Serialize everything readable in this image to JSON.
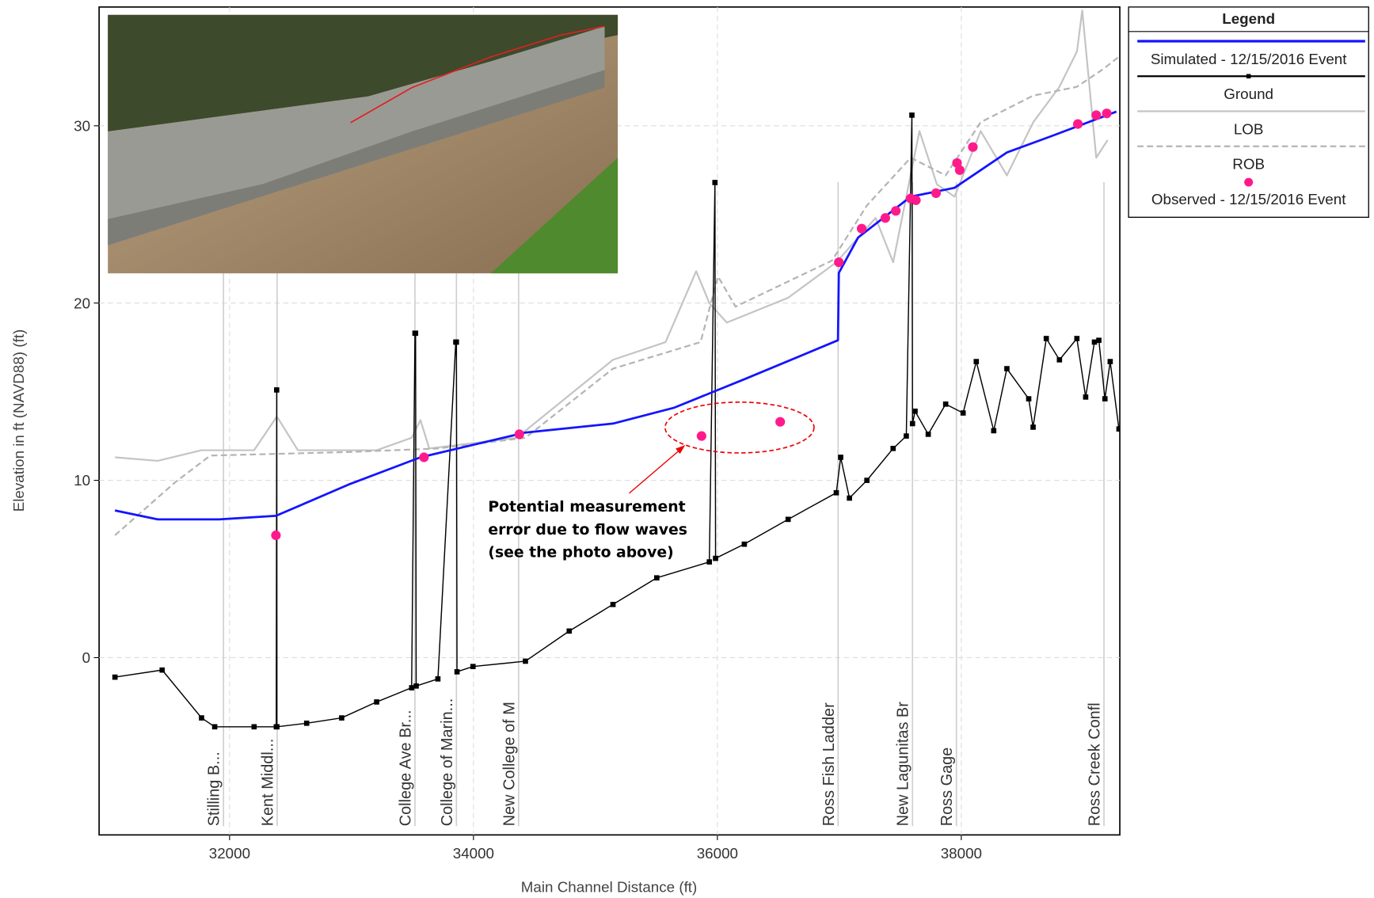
{
  "chart_data": {
    "type": "profile",
    "xlabel": "Main Channel Distance (ft)",
    "ylabel": "Elevation in ft (NAVD88) (ft)",
    "xlim": [
      30930,
      39300
    ],
    "ylim": [
      -10,
      36.7
    ],
    "xticks": [
      32000,
      34000,
      36000,
      38000
    ],
    "yticks": [
      0,
      10,
      20,
      30
    ],
    "grid": true,
    "legend_title": "Legend",
    "legend": "outside-right",
    "series": [
      {
        "name": "Simulated - 12/15/2016 Event",
        "type": "line",
        "color": "#1414ff",
        "dash": false,
        "x": [
          31060,
          31411,
          31914,
          32380,
          32990,
          33565,
          33996,
          34426,
          35144,
          35647,
          36221,
          36989,
          36996,
          37154,
          37585,
          37944,
          38375,
          38733,
          39272
        ],
        "values": [
          8.3,
          7.8,
          7.8,
          8.0,
          9.8,
          11.3,
          12.0,
          12.7,
          13.2,
          14.1,
          15.7,
          17.9,
          21.7,
          23.7,
          26.0,
          26.5,
          28.5,
          29.4,
          30.8
        ]
      },
      {
        "name": "Ground",
        "type": "line-marker",
        "color": "#000000",
        "dash": false,
        "x": [
          31060,
          31447,
          31770,
          31878,
          32201,
          32383,
          32386,
          32388,
          32632,
          32919,
          33206,
          33493,
          33520,
          33525,
          33530,
          33708,
          33855,
          33860,
          33865,
          33996,
          34426,
          34785,
          35144,
          35503,
          35934,
          35980,
          35985,
          36221,
          36580,
          36975,
          37011,
          37083,
          37226,
          37441,
          37549,
          37595,
          37600,
          37621,
          37729,
          37872,
          38015,
          38123,
          38266,
          38374,
          38553,
          38589,
          38697,
          38805,
          38948,
          39020,
          39092,
          39128,
          39178,
          39221,
          39293
        ],
        "values": [
          -1.1,
          -0.7,
          -3.4,
          -3.9,
          -3.9,
          -3.9,
          15.1,
          -3.9,
          -3.7,
          -3.4,
          -2.5,
          -1.7,
          18.3,
          18.3,
          -1.6,
          -1.2,
          17.8,
          17.8,
          -0.8,
          -0.5,
          -0.2,
          1.5,
          3.0,
          4.5,
          5.4,
          26.8,
          5.6,
          6.4,
          7.8,
          9.3,
          11.3,
          9.0,
          10.0,
          11.8,
          12.5,
          30.6,
          13.2,
          13.9,
          12.6,
          14.3,
          13.8,
          16.7,
          12.8,
          16.3,
          14.6,
          13.0,
          18.0,
          16.8,
          18.0,
          14.7,
          17.8,
          17.9,
          14.6,
          16.7,
          12.9
        ]
      },
      {
        "name": "LOB",
        "type": "line",
        "color": "#c4c4c4",
        "dash": false,
        "x": [
          31060,
          31411,
          31770,
          32201,
          32388,
          32560,
          33206,
          33493,
          33565,
          33637,
          34354,
          35144,
          35575,
          35826,
          35934,
          36077,
          36580,
          36975,
          37298,
          37441,
          37657,
          37800,
          37944,
          38159,
          38374,
          38590,
          38805,
          38949,
          38992,
          39107,
          39200
        ],
        "values": [
          11.3,
          11.1,
          11.7,
          11.7,
          13.6,
          11.7,
          11.7,
          12.4,
          13.4,
          11.8,
          12.4,
          16.8,
          17.8,
          21.8,
          20.0,
          18.9,
          20.3,
          22.3,
          24.8,
          22.3,
          29.7,
          26.7,
          26.0,
          29.7,
          27.2,
          30.2,
          32.2,
          34.2,
          36.5,
          28.2,
          29.2
        ]
      },
      {
        "name": "ROB",
        "type": "line",
        "color": "#b4b4b4",
        "dash": true,
        "x": [
          31060,
          31555,
          31842,
          32990,
          33708,
          34426,
          35144,
          35862,
          36005,
          36149,
          36940,
          37226,
          37585,
          37872,
          38159,
          38589,
          38948,
          39164,
          39293
        ],
        "values": [
          6.9,
          9.9,
          11.4,
          11.6,
          11.8,
          12.4,
          16.3,
          17.8,
          21.5,
          19.8,
          22.4,
          25.5,
          28.2,
          27.2,
          30.2,
          31.7,
          32.2,
          33.2,
          33.9
        ]
      },
      {
        "name": "Observed - 12/15/2016 Event",
        "type": "scatter",
        "color": "#ff1a8c",
        "dash": false,
        "x": [
          32380,
          33594,
          34376,
          35870,
          36515,
          36996,
          37183,
          37377,
          37463,
          37585,
          37628,
          37793,
          37965,
          37987,
          38095,
          38956,
          39107,
          39193
        ],
        "values": [
          6.9,
          11.3,
          12.6,
          12.5,
          13.3,
          22.3,
          24.2,
          24.8,
          25.2,
          25.9,
          25.8,
          26.2,
          27.9,
          27.5,
          28.8,
          30.1,
          30.6,
          30.7
        ]
      }
    ],
    "stations": [
      {
        "name": "Stilling B...",
        "x": 31950
      },
      {
        "name": "Kent Middl...",
        "x": 32390
      },
      {
        "name": "College Ave Br...",
        "x": 33520
      },
      {
        "name": "College of Marin...",
        "x": 33860
      },
      {
        "name": "New College of M",
        "x": 34370
      },
      {
        "name": "Ross Fish Ladder",
        "x": 36990
      },
      {
        "name": "New Lagunitas Br",
        "x": 37600
      },
      {
        "name": "Ross Gage",
        "x": 37960
      },
      {
        "name": "Ross Creek Confl",
        "x": 39170
      }
    ],
    "annotation_lines": [
      "Potential measurement",
      "error due to flow waves",
      "(see the photo above)"
    ]
  }
}
